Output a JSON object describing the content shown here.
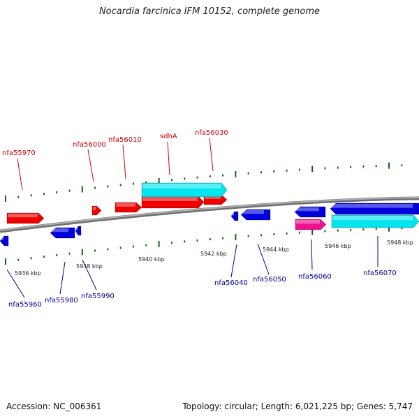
{
  "title": "Nocardia farcinica IFM 10152, complete genome",
  "footer": {
    "accession": "Accession: NC_006361",
    "topology": "Topology: circular; Length: 6,021,225 bp; Genes: 5,747"
  },
  "colors": {
    "forward_gene": "#ee0000",
    "reverse_gene": "#0000dd",
    "rrna_cyan": "#00e5ee",
    "magenta": "#ee1190",
    "tick": "#116611",
    "backbone": "#888888",
    "forward_label": "#cc0000",
    "reverse_label": "#000099"
  },
  "scale": {
    "unit": "kbp",
    "ticks": [
      {
        "pos": 5936,
        "label": "5936 kbp"
      },
      {
        "pos": 5938,
        "label": "5938 kbp"
      },
      {
        "pos": 5940,
        "label": "5940 kbp"
      },
      {
        "pos": 5942,
        "label": "5942 kbp"
      },
      {
        "pos": 5944,
        "label": "5944 kbp"
      },
      {
        "pos": 5946,
        "label": "5946 kbp"
      },
      {
        "pos": 5948,
        "label": "5948 kbp"
      }
    ]
  },
  "labels": {
    "forward": [
      "nfa55970",
      "nfa56000",
      "nfa56010",
      "sdhA",
      "nfa56030"
    ],
    "reverse": [
      "nfa55960",
      "nfa55980",
      "nfa55990",
      "nfa56040",
      "nfa56050",
      "nfa56060",
      "nfa56070"
    ]
  }
}
